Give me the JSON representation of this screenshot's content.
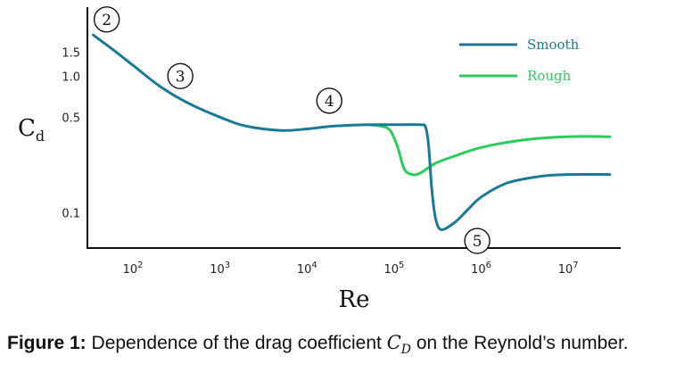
{
  "chart_data": {
    "type": "line",
    "xlabel": "Re",
    "ylabel_main": "C",
    "ylabel_sub": "d",
    "x_scale": "log",
    "y_scale": "log",
    "xlim": [
      30,
      40000000
    ],
    "ylim": [
      0.055,
      3.2
    ],
    "x_ticks": [
      {
        "value": 100,
        "base": "10",
        "exp": "2"
      },
      {
        "value": 1000,
        "base": "10",
        "exp": "3"
      },
      {
        "value": 10000,
        "base": "10",
        "exp": "4"
      },
      {
        "value": 100000,
        "base": "10",
        "exp": "5"
      },
      {
        "value": 1000000,
        "base": "10",
        "exp": "6"
      },
      {
        "value": 10000000,
        "base": "10",
        "exp": "7"
      }
    ],
    "y_ticks": [
      {
        "value": 0.1,
        "label": "0.1"
      },
      {
        "value": 0.5,
        "label": "0.5"
      },
      {
        "value": 1.0,
        "label": "1.0"
      },
      {
        "value": 1.5,
        "label": "1.5"
      }
    ],
    "grid": false,
    "legend_position": "top-right",
    "series": [
      {
        "name": "Smooth",
        "color": "#1a7a96",
        "points": [
          [
            35,
            2.0
          ],
          [
            60,
            1.55
          ],
          [
            100,
            1.2
          ],
          [
            200,
            0.85
          ],
          [
            400,
            0.65
          ],
          [
            1000,
            0.5
          ],
          [
            2000,
            0.43
          ],
          [
            5000,
            0.4
          ],
          [
            10000,
            0.41
          ],
          [
            20000,
            0.43
          ],
          [
            50000,
            0.44
          ],
          [
            100000,
            0.44
          ],
          [
            200000,
            0.44
          ],
          [
            230000,
            0.42
          ],
          [
            250000,
            0.3
          ],
          [
            270000,
            0.15
          ],
          [
            300000,
            0.09
          ],
          [
            350000,
            0.075
          ],
          [
            500000,
            0.085
          ],
          [
            700000,
            0.105
          ],
          [
            1000000,
            0.13
          ],
          [
            2000000,
            0.165
          ],
          [
            5000000,
            0.185
          ],
          [
            10000000,
            0.19
          ],
          [
            30000000,
            0.19
          ]
        ]
      },
      {
        "name": "Rough",
        "color": "#2bcc5c",
        "points": [
          [
            50000,
            0.44
          ],
          [
            70000,
            0.43
          ],
          [
            90000,
            0.4
          ],
          [
            110000,
            0.3
          ],
          [
            130000,
            0.21
          ],
          [
            160000,
            0.19
          ],
          [
            200000,
            0.195
          ],
          [
            300000,
            0.23
          ],
          [
            500000,
            0.26
          ],
          [
            1000000,
            0.3
          ],
          [
            3000000,
            0.34
          ],
          [
            10000000,
            0.36
          ],
          [
            30000000,
            0.36
          ]
        ]
      }
    ],
    "annotations": [
      {
        "text": "2",
        "x": 50,
        "y": 2.6
      },
      {
        "text": "3",
        "x": 350,
        "y": 1.0
      },
      {
        "text": "4",
        "x": 18000,
        "y": 0.66
      },
      {
        "text": "5",
        "x": 900000,
        "y": 0.062
      }
    ]
  },
  "caption": {
    "label": "Figure 1:",
    "text_before": " Dependence of the drag coefficient ",
    "math_main": "C",
    "math_sub": "D",
    "text_after": " on the Reynold’s number."
  }
}
